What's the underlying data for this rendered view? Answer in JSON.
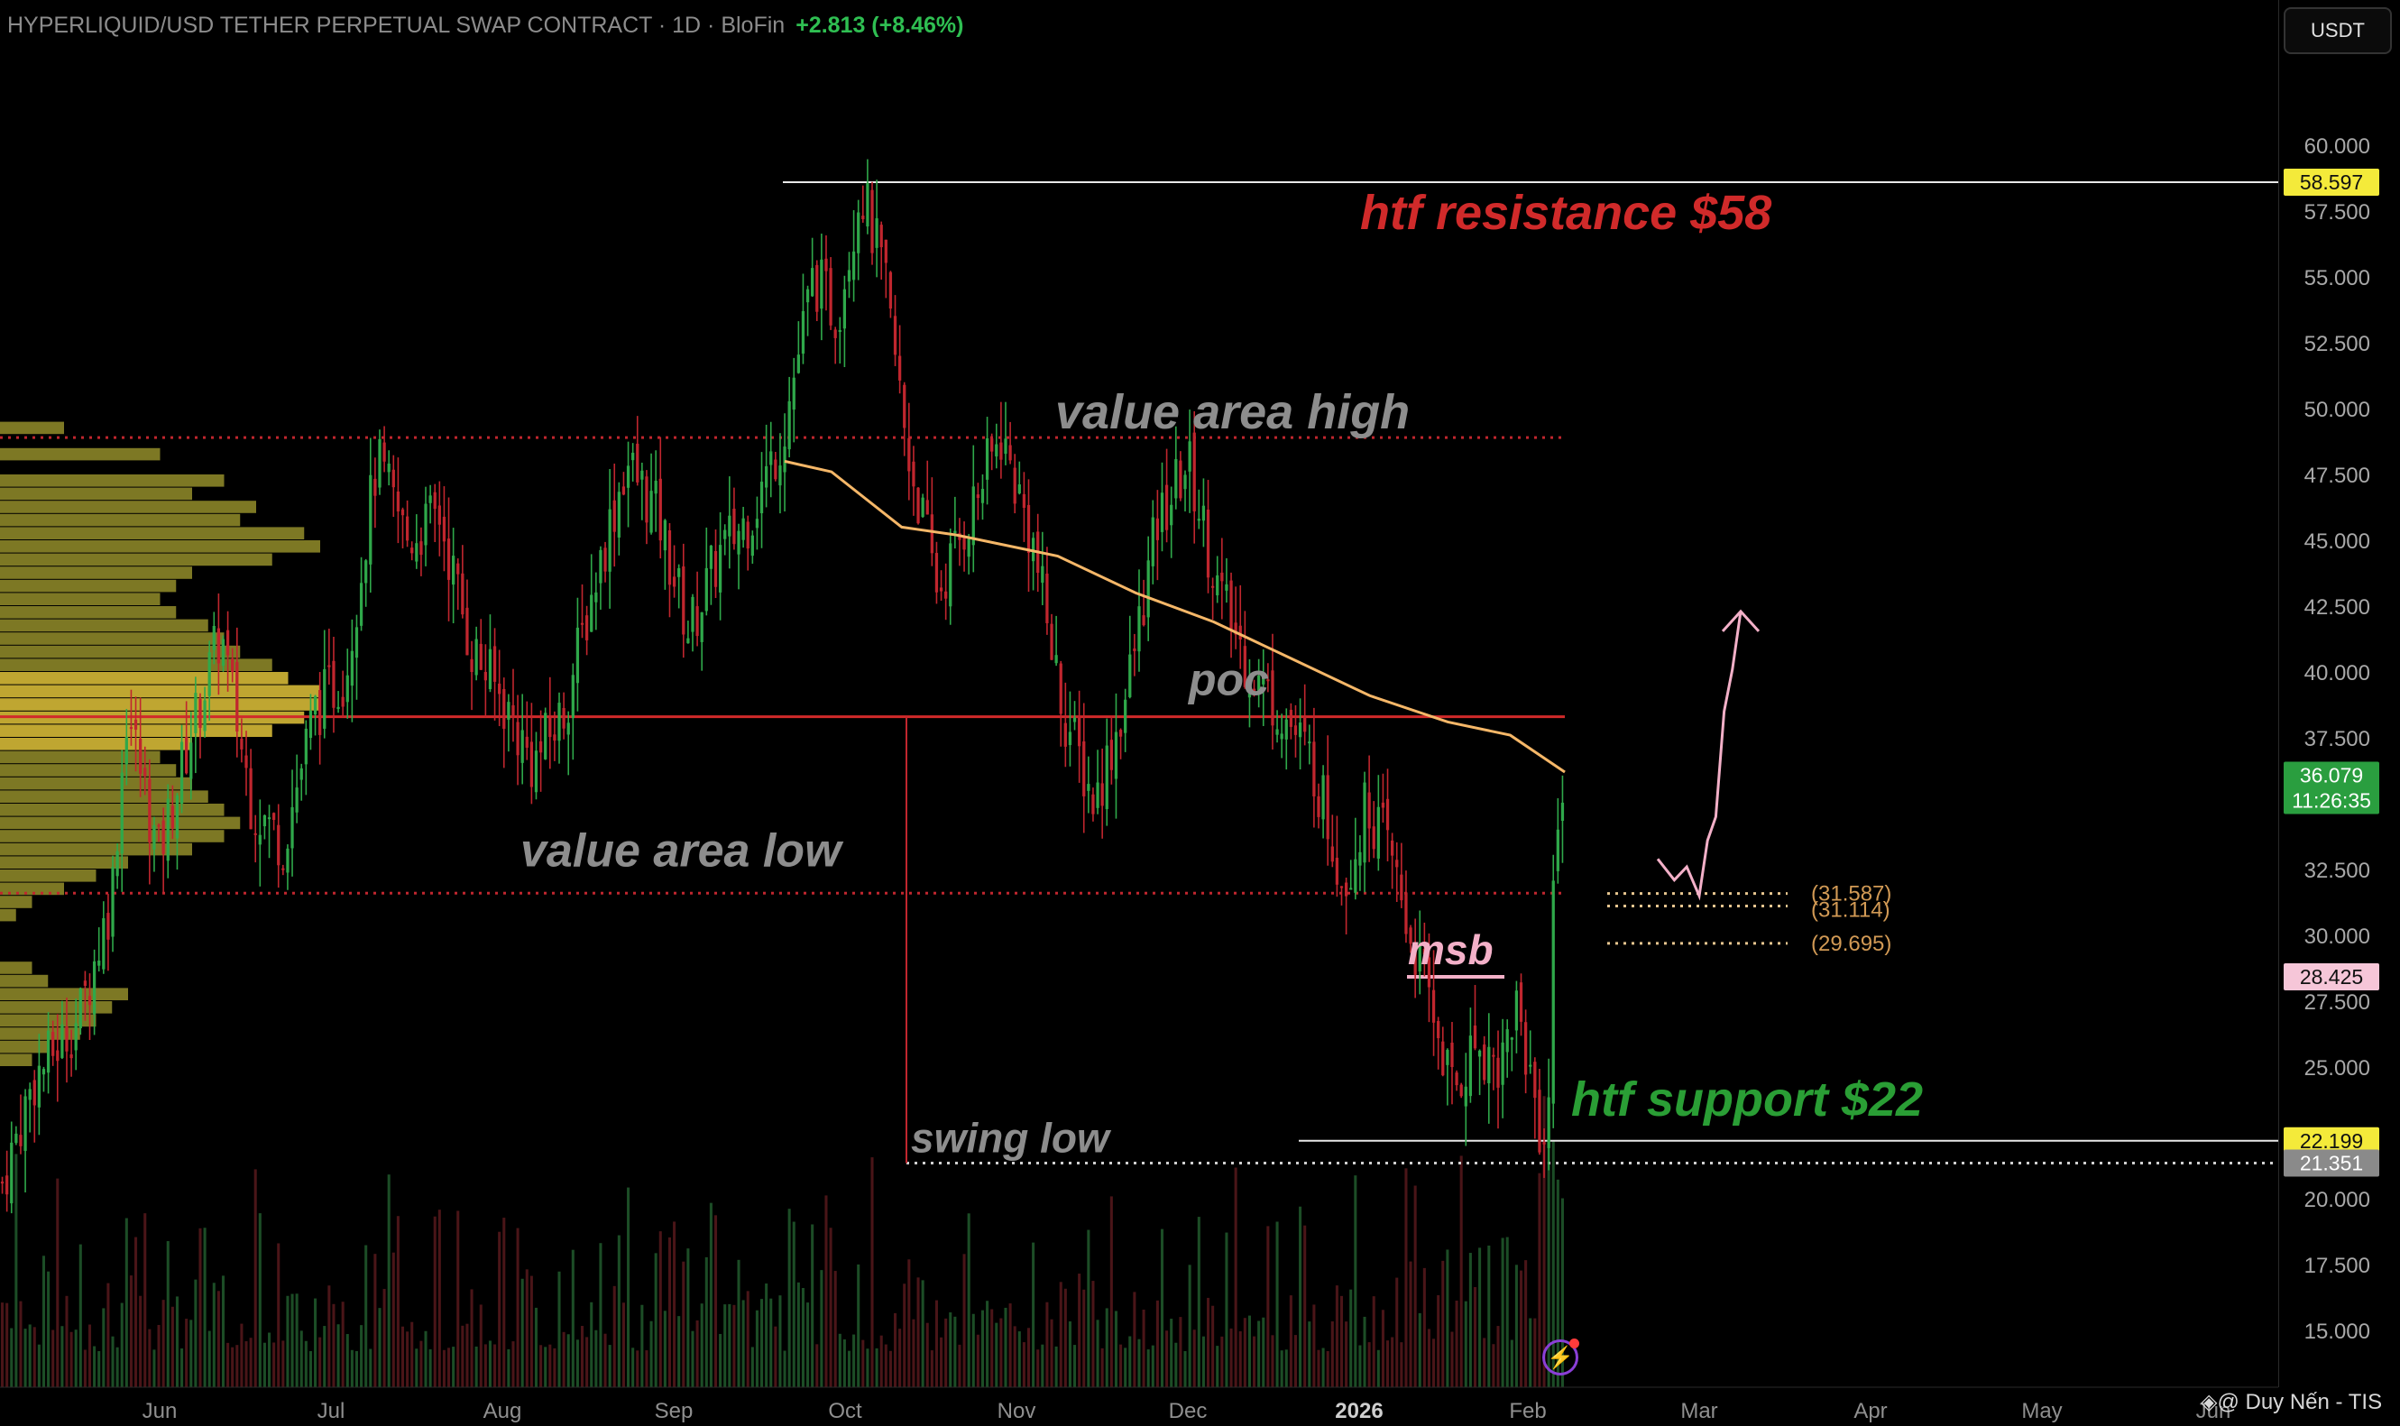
{
  "header": {
    "symbol_line": "HYPERLIQUID/USD TETHER PERPETUAL SWAP CONTRACT · 1D · BloFin",
    "change": "+2.813 (+8.46%)"
  },
  "unit": "USDT",
  "watermark": "@ Duy Nến - TIS",
  "colors": {
    "bull": "#2fa84a",
    "bear": "#c0262e",
    "resistance_text": "#d02a2a",
    "support_text": "#2a9e35",
    "label_gray": "#8d8d8d",
    "ma_line": "#f5b768",
    "profile_yellow": "#c9c23a",
    "price_tag": "#2a9e3f",
    "msb_pink": "#f3b0c8"
  },
  "chart_data": {
    "type": "candlestick",
    "title": "",
    "y_axis": {
      "ticks": [
        "60.000",
        "57.500",
        "55.000",
        "52.500",
        "50.000",
        "47.500",
        "45.000",
        "42.500",
        "40.000",
        "37.500",
        "32.500",
        "30.000",
        "27.500",
        "25.000",
        "20.000",
        "17.500",
        "15.000"
      ],
      "ylim": [
        12.5,
        62.5
      ],
      "scale": "linear"
    },
    "x_axis": {
      "ticks": [
        "Jun",
        "Jul",
        "Aug",
        "Sep",
        "Oct",
        "Nov",
        "Dec",
        "2026",
        "Feb",
        "Mar",
        "Apr",
        "May",
        "Jun"
      ]
    },
    "price_tags": [
      {
        "value": "58.597",
        "style": "yellow"
      },
      {
        "value": "36.079",
        "sub": "11:26:35",
        "style": "green"
      },
      {
        "value": "28.425",
        "style": "pink"
      },
      {
        "value": "22.199",
        "style": "yellow"
      },
      {
        "value": "21.351",
        "style": "gray"
      }
    ],
    "levels": [
      {
        "name": "htf resistance",
        "value": 58.597
      },
      {
        "name": "value area high",
        "value": 48.9
      },
      {
        "name": "poc",
        "value": 38.3
      },
      {
        "name": "value area low",
        "value": 31.6
      },
      {
        "name": "htf support",
        "value": 22.199
      },
      {
        "name": "swing low",
        "value": 21.351
      }
    ],
    "annotations": [
      {
        "text": "htf resistance $58",
        "value": 58.597
      },
      {
        "text": "value area high",
        "value": 48.9
      },
      {
        "text": "poc",
        "value": 38.3
      },
      {
        "text": "value area low",
        "value": 31.6
      },
      {
        "text": "msb",
        "value": 28.425
      },
      {
        "text": "htf support $22",
        "value": 22.199
      },
      {
        "text": "swing low",
        "value": 21.351
      }
    ],
    "target_levels": [
      {
        "label": "(31.587)",
        "value": 31.587
      },
      {
        "label": "(31.114)",
        "value": 31.114
      },
      {
        "label": "(29.695)",
        "value": 29.695
      }
    ],
    "projection": [
      [
        0,
        32.9
      ],
      [
        0.2,
        32.1
      ],
      [
        0.35,
        32.6
      ],
      [
        0.5,
        31.5
      ],
      [
        0.6,
        33.6
      ],
      [
        0.7,
        34.5
      ],
      [
        0.8,
        38.5
      ],
      [
        0.9,
        40.1
      ],
      [
        1.0,
        42.3
      ]
    ],
    "ma": [
      [
        0.0,
        48.0
      ],
      [
        0.06,
        47.6
      ],
      [
        0.15,
        45.5
      ],
      [
        0.22,
        45.2
      ],
      [
        0.35,
        44.4
      ],
      [
        0.45,
        43.0
      ],
      [
        0.55,
        41.9
      ],
      [
        0.65,
        40.5
      ],
      [
        0.75,
        39.1
      ],
      [
        0.85,
        38.1
      ],
      [
        0.93,
        37.6
      ],
      [
        1.0,
        36.2
      ]
    ],
    "price_path": [
      [
        0.0,
        20.6
      ],
      [
        0.02,
        24.5
      ],
      [
        0.05,
        27.0
      ],
      [
        0.07,
        31.5
      ],
      [
        0.08,
        38.7
      ],
      [
        0.1,
        33.0
      ],
      [
        0.12,
        37.5
      ],
      [
        0.14,
        41.5
      ],
      [
        0.16,
        35.0
      ],
      [
        0.18,
        33.5
      ],
      [
        0.2,
        38.5
      ],
      [
        0.22,
        40.0
      ],
      [
        0.24,
        48.0
      ],
      [
        0.26,
        45.0
      ],
      [
        0.28,
        46.0
      ],
      [
        0.3,
        41.0
      ],
      [
        0.32,
        39.0
      ],
      [
        0.34,
        36.5
      ],
      [
        0.36,
        38.5
      ],
      [
        0.38,
        43.5
      ],
      [
        0.4,
        48.0
      ],
      [
        0.42,
        46.0
      ],
      [
        0.44,
        41.5
      ],
      [
        0.46,
        44.5
      ],
      [
        0.48,
        46.0
      ],
      [
        0.5,
        49.0
      ],
      [
        0.52,
        55.0
      ],
      [
        0.535,
        53.5
      ],
      [
        0.55,
        58.5
      ],
      [
        0.565,
        55.0
      ],
      [
        0.58,
        48.5
      ],
      [
        0.6,
        43.0
      ],
      [
        0.62,
        46.0
      ],
      [
        0.64,
        49.0
      ],
      [
        0.66,
        45.0
      ],
      [
        0.68,
        38.5
      ],
      [
        0.7,
        35.0
      ],
      [
        0.72,
        39.0
      ],
      [
        0.74,
        45.5
      ],
      [
        0.76,
        48.0
      ],
      [
        0.78,
        43.0
      ],
      [
        0.8,
        40.0
      ],
      [
        0.82,
        38.5
      ],
      [
        0.84,
        36.5
      ],
      [
        0.86,
        32.0
      ],
      [
        0.875,
        35.0
      ],
      [
        0.89,
        33.0
      ],
      [
        0.9,
        30.5
      ],
      [
        0.915,
        27.5
      ],
      [
        0.93,
        24.0
      ],
      [
        0.945,
        26.0
      ],
      [
        0.96,
        25.0
      ],
      [
        0.97,
        27.5
      ],
      [
        0.98,
        24.5
      ],
      [
        0.99,
        21.5
      ],
      [
        0.995,
        33.5
      ],
      [
        1.0,
        36.079
      ]
    ],
    "volume_profile": [
      [
        49.0,
        0.2
      ],
      [
        48.0,
        0.5
      ],
      [
        47.0,
        0.7
      ],
      [
        46.5,
        0.6
      ],
      [
        46.0,
        0.8
      ],
      [
        45.5,
        0.75
      ],
      [
        45.0,
        0.95
      ],
      [
        44.5,
        1.0
      ],
      [
        44.0,
        0.85
      ],
      [
        43.5,
        0.6
      ],
      [
        43.0,
        0.55
      ],
      [
        42.5,
        0.5
      ],
      [
        42.0,
        0.55
      ],
      [
        41.5,
        0.65
      ],
      [
        41.0,
        0.7
      ],
      [
        40.5,
        0.75
      ],
      [
        40.0,
        0.85
      ],
      [
        39.5,
        0.9
      ],
      [
        39.0,
        1.0
      ],
      [
        38.5,
        1.0
      ],
      [
        38.0,
        0.95
      ],
      [
        37.5,
        0.85
      ],
      [
        37.0,
        0.6
      ],
      [
        36.5,
        0.5
      ],
      [
        36.0,
        0.55
      ],
      [
        35.5,
        0.6
      ],
      [
        35.0,
        0.65
      ],
      [
        34.5,
        0.7
      ],
      [
        34.0,
        0.75
      ],
      [
        33.5,
        0.7
      ],
      [
        33.0,
        0.6
      ],
      [
        32.5,
        0.4
      ],
      [
        32.0,
        0.3
      ],
      [
        31.5,
        0.2
      ],
      [
        31.0,
        0.1
      ],
      [
        30.5,
        0.05
      ],
      [
        28.5,
        0.1
      ],
      [
        28.0,
        0.15
      ],
      [
        27.5,
        0.4
      ],
      [
        27.0,
        0.35
      ],
      [
        26.5,
        0.3
      ],
      [
        26.0,
        0.25
      ],
      [
        25.5,
        0.15
      ],
      [
        25.0,
        0.1
      ]
    ]
  }
}
